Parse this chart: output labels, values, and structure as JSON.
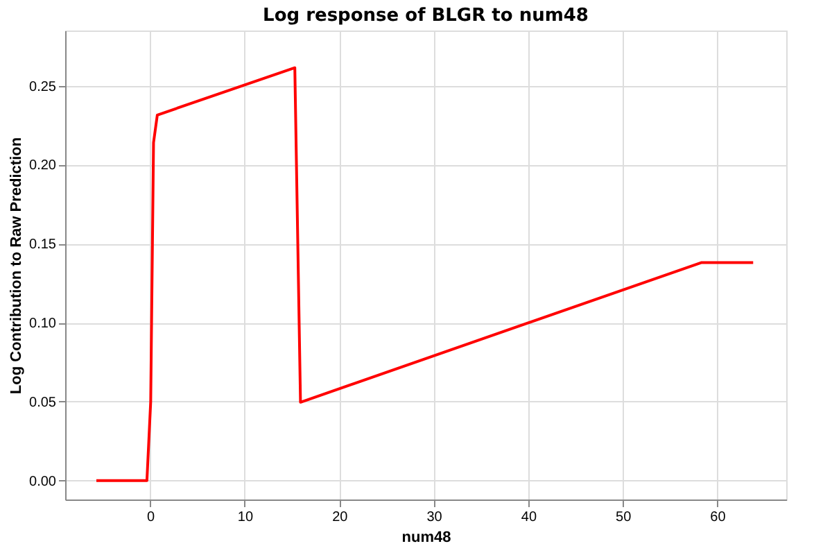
{
  "chart_data": {
    "type": "line",
    "title": "Log response of BLGR to num48",
    "xlabel": "num48",
    "ylabel": "Log Contribution to Raw Prediction",
    "x": [
      -5.7,
      -0.35,
      0.05,
      0.35,
      0.75,
      15.3,
      15.9,
      58.3,
      63.8
    ],
    "series": [
      {
        "color": "#ff0000",
        "values": [
          0,
          0,
          0.05,
          0.214,
          0.2315,
          0.2614,
          0.0496,
          0.138,
          0.138
        ]
      }
    ],
    "xlim": [
      -9,
      67.3
    ],
    "xticks": [
      0,
      10,
      20,
      30,
      40,
      50,
      60
    ],
    "ylim": [
      -0.012,
      0.285
    ],
    "yticks": [
      {
        "value": 0,
        "label": "0.00"
      },
      {
        "value": 0.05,
        "label": "0.05"
      },
      {
        "value": 0.1,
        "label": "0.10"
      },
      {
        "value": 0.15,
        "label": "0.15"
      },
      {
        "value": 0.2,
        "label": "0.20"
      },
      {
        "value": 0.25,
        "label": "0.25"
      }
    ],
    "grid": true,
    "marker": "none",
    "line_style": "solid"
  }
}
